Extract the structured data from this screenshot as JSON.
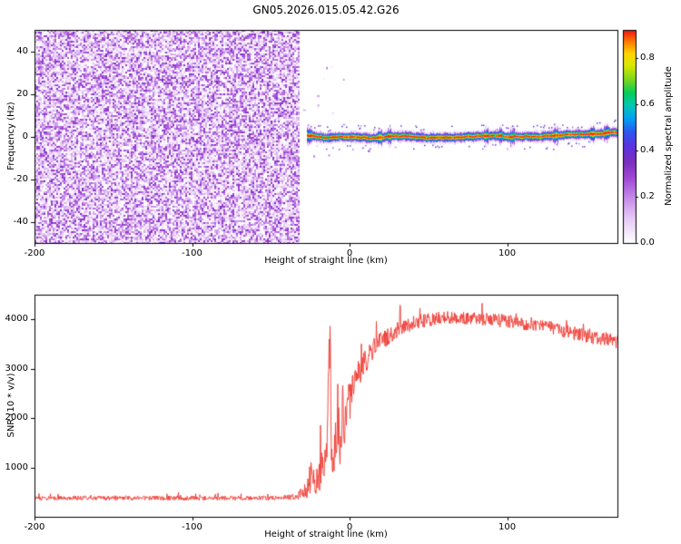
{
  "title": "GN05.2026.015.05.42.G26",
  "seed": 7,
  "chart_data": [
    {
      "type": "heatmap",
      "title": "GN05.2026.015.05.42.G26",
      "xlabel": "Height of straight line (km)",
      "ylabel": "Frequency (Hz)",
      "xlim": [
        -200,
        170
      ],
      "ylim": [
        -50,
        50
      ],
      "xticks": [
        -200,
        -100,
        0,
        100
      ],
      "yticks": [
        40,
        20,
        0,
        -20,
        -40
      ],
      "grid": false,
      "colorbar": {
        "label": "Normalized spectral amplitude",
        "ticks": [
          "0.0",
          "0.2",
          "0.4",
          "0.6",
          "0.8"
        ],
        "range": [
          0,
          0.92
        ]
      },
      "colormap": [
        [
          0.0,
          "#ffffff"
        ],
        [
          0.04,
          "#f6edfb"
        ],
        [
          0.12,
          "#e3c2f5"
        ],
        [
          0.2,
          "#c489e8"
        ],
        [
          0.28,
          "#a149d6"
        ],
        [
          0.35,
          "#7d2fbf"
        ],
        [
          0.42,
          "#5c33e0"
        ],
        [
          0.48,
          "#2e55f0"
        ],
        [
          0.54,
          "#00a2f0"
        ],
        [
          0.6,
          "#00c9b0"
        ],
        [
          0.65,
          "#06cc58"
        ],
        [
          0.71,
          "#7fd819"
        ],
        [
          0.77,
          "#dce800"
        ],
        [
          0.82,
          "#ffd400"
        ],
        [
          0.87,
          "#ff7d00"
        ],
        [
          0.92,
          "#ef1515"
        ]
      ],
      "regions": {
        "noise": {
          "x_start": -200,
          "x_end": -32,
          "value_range": [
            0,
            0.35
          ],
          "description": "broadband purple speckle noise filling full frequency band before signal acquisition"
        },
        "signal": {
          "x_start": -27,
          "x_end": 170,
          "center_hz": 0,
          "core_value": 0.91,
          "halo_hz": 6,
          "description": "narrow high-amplitude carrier line at ~0 Hz: red core, yellow/green/cyan/blue rings, pale purple fringe with scattered specks"
        }
      }
    },
    {
      "type": "line",
      "xlabel": "Height of straight line (km)",
      "ylabel": "SNR (10 * v/v)",
      "xlim": [
        -200,
        170
      ],
      "ylim": [
        0,
        4500
      ],
      "xticks": [
        -200,
        -100,
        0,
        100
      ],
      "yticks": [
        1000,
        2000,
        3000,
        4000
      ],
      "grid": false,
      "line_color": "#ee3b33",
      "envelope_format": [
        "x_km",
        "mean_snr",
        "noise_amplitude"
      ],
      "envelope": [
        [
          -200,
          380,
          90
        ],
        [
          -45,
          380,
          90
        ],
        [
          -33,
          400,
          130
        ],
        [
          -30,
          520,
          300
        ],
        [
          -27,
          520,
          300
        ],
        [
          -25,
          800,
          700
        ],
        [
          -22,
          700,
          500
        ],
        [
          -19,
          900,
          800
        ],
        [
          -16,
          1100,
          900
        ],
        [
          -14,
          1600,
          1200
        ],
        [
          -12.8,
          3200,
          1500
        ],
        [
          -12.3,
          4000,
          200
        ],
        [
          -11.6,
          1200,
          600
        ],
        [
          -10.5,
          1000,
          500
        ],
        [
          -9,
          1500,
          1100
        ],
        [
          -7.5,
          2100,
          1200
        ],
        [
          -6,
          1300,
          800
        ],
        [
          -4.5,
          2300,
          900
        ],
        [
          -3,
          1700,
          900
        ],
        [
          -1.5,
          2500,
          700
        ],
        [
          0,
          2300,
          800
        ],
        [
          2,
          2700,
          700
        ],
        [
          5,
          2900,
          600
        ],
        [
          9,
          3100,
          500
        ],
        [
          14,
          3350,
          450
        ],
        [
          20,
          3550,
          400
        ],
        [
          28,
          3750,
          350
        ],
        [
          38,
          3900,
          300
        ],
        [
          50,
          4000,
          280
        ],
        [
          65,
          4050,
          260
        ],
        [
          85,
          4000,
          260
        ],
        [
          105,
          3950,
          280
        ],
        [
          125,
          3850,
          280
        ],
        [
          145,
          3700,
          280
        ],
        [
          170,
          3550,
          300
        ]
      ]
    }
  ]
}
